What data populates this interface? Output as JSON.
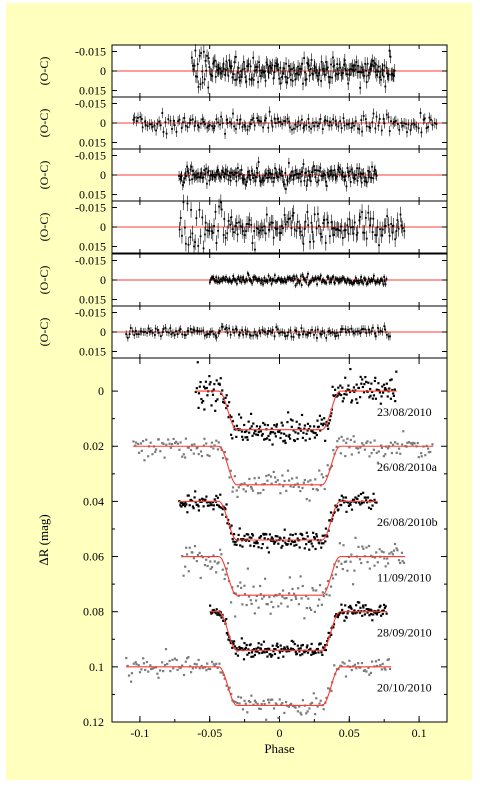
{
  "figure": {
    "background": "#ffffbe",
    "frame_color": "#000000"
  },
  "chart_data": {
    "type": "scatter",
    "xlabel": "Phase",
    "xlim": [
      -0.12,
      0.12
    ],
    "x_ticks": [
      -0.1,
      -0.05,
      0,
      0.05,
      0.1
    ],
    "x_tick_labels": [
      "-0.1",
      "-0.05",
      "0",
      "0.05",
      "0.1"
    ],
    "residual_panels": {
      "ylabel": "(O-C)",
      "ylim": [
        -0.02,
        0.02
      ],
      "y_inverted": true,
      "y_ticks": [
        -0.015,
        0,
        0.015
      ],
      "y_tick_labels": [
        "-0.015",
        "0",
        "0.015"
      ],
      "zero_line_color": "#ff3b30",
      "panels": [
        {
          "x_range": [
            -0.063,
            0.083
          ],
          "scatter": 0.0045,
          "error_bar": 0.005,
          "n": 240,
          "dense": true
        },
        {
          "x_range": [
            -0.105,
            0.113
          ],
          "scatter": 0.003,
          "error_bar": 0.004,
          "n": 190,
          "dense": false
        },
        {
          "x_range": [
            -0.072,
            0.07
          ],
          "scatter": 0.0035,
          "error_bar": 0.004,
          "n": 230,
          "dense": true
        },
        {
          "x_range": [
            -0.072,
            0.09
          ],
          "scatter": 0.0055,
          "error_bar": 0.006,
          "n": 170,
          "dense": false
        },
        {
          "x_range": [
            -0.05,
            0.077
          ],
          "scatter": 0.0018,
          "error_bar": 0.002,
          "n": 230,
          "dense": true
        },
        {
          "x_range": [
            -0.11,
            0.08
          ],
          "scatter": 0.002,
          "error_bar": 0.003,
          "n": 170,
          "dense": false
        }
      ]
    },
    "light_curve_panel": {
      "ylabel": "ΔR (mag)",
      "ylim": [
        -0.012,
        0.12
      ],
      "y_inverted": true,
      "y_ticks": [
        0,
        0.02,
        0.04,
        0.06,
        0.08,
        0.1,
        0.12
      ],
      "y_tick_labels": [
        "0",
        "0.02",
        "0.04",
        "0.06",
        "0.08",
        "0.1",
        "0.12"
      ],
      "model_color": "#ff3b30",
      "transit": {
        "depth": 0.014,
        "t14": 0.087,
        "t12": 0.013
      },
      "series": [
        {
          "name": "23/08/2010",
          "offset": 0.0,
          "x_range": [
            -0.06,
            0.084
          ],
          "color": "#000000",
          "noise": 0.0024,
          "n": 260
        },
        {
          "name": "26/08/2010a",
          "offset": 0.02,
          "x_range": [
            -0.105,
            0.11
          ],
          "color": "#7a7a7a",
          "noise": 0.0022,
          "n": 210
        },
        {
          "name": "26/08/2010b",
          "offset": 0.04,
          "x_range": [
            -0.072,
            0.07
          ],
          "color": "#000000",
          "noise": 0.0018,
          "n": 250
        },
        {
          "name": "11/09/2010",
          "offset": 0.06,
          "x_range": [
            -0.07,
            0.09
          ],
          "color": "#7a7a7a",
          "noise": 0.0032,
          "n": 170
        },
        {
          "name": "28/09/2010",
          "offset": 0.08,
          "x_range": [
            -0.05,
            0.077
          ],
          "color": "#000000",
          "noise": 0.0013,
          "n": 240
        },
        {
          "name": "20/10/2010",
          "offset": 0.1,
          "x_range": [
            -0.11,
            0.08
          ],
          "color": "#7a7a7a",
          "noise": 0.0019,
          "n": 180
        }
      ]
    }
  }
}
